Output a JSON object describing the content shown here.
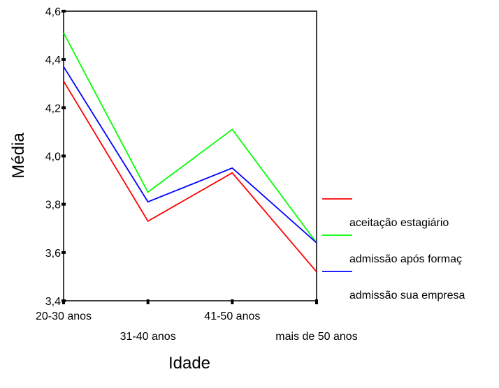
{
  "chart_data": {
    "type": "line",
    "xlabel": "Idade",
    "ylabel": "Média",
    "categories": [
      "20-30 anos",
      "31-40 anos",
      "41-50 anos",
      "mais de 50 anos"
    ],
    "ylim": [
      3.4,
      4.6
    ],
    "yticks": [
      "3,4",
      "3,6",
      "3,8",
      "4,0",
      "4,2",
      "4,4",
      "4,6"
    ],
    "series": [
      {
        "name": "aceitação estagiário",
        "color": "#ff0000",
        "values": [
          4.31,
          3.73,
          3.93,
          3.52
        ]
      },
      {
        "name": "admissão após formaç",
        "color": "#00ff00",
        "values": [
          4.51,
          3.85,
          4.11,
          3.64
        ]
      },
      {
        "name": "admissão sua empresa",
        "color": "#0000ff",
        "values": [
          4.37,
          3.81,
          3.95,
          3.64
        ]
      }
    ],
    "legend_placement": "right",
    "grid": false
  }
}
